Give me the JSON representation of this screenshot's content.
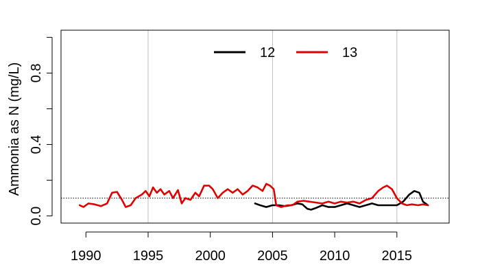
{
  "chart_data": {
    "type": "line",
    "ylabel": "Ammonia as N (mg/L)",
    "xlim": [
      1988.0,
      2019.2
    ],
    "ylim": [
      -0.04,
      1.04
    ],
    "x_ticks": [
      1990,
      1995,
      2000,
      2005,
      2010,
      2015
    ],
    "x_tick_labels": [
      "1990",
      "1995",
      "2000",
      "2005",
      "2010",
      "2015"
    ],
    "y_ticks": [
      0.0,
      0.4,
      0.8
    ],
    "y_tick_labels": [
      "0.0",
      "0.4",
      "0.8"
    ],
    "vertical_gridlines": [
      1995,
      2005,
      2015
    ],
    "reference_line": {
      "y": 0.1,
      "style": "dotted",
      "color": "#000000"
    },
    "legend_position": "top-center",
    "series": [
      {
        "name": "12",
        "color": "#000000",
        "points": [
          [
            2003.6,
            0.07
          ],
          [
            2004.0,
            0.06
          ],
          [
            2004.5,
            0.05
          ],
          [
            2005.0,
            0.06
          ],
          [
            2005.5,
            0.06
          ],
          [
            2006.0,
            0.055
          ],
          [
            2006.5,
            0.06
          ],
          [
            2007.0,
            0.07
          ],
          [
            2007.4,
            0.065
          ],
          [
            2007.8,
            0.04
          ],
          [
            2008.1,
            0.035
          ],
          [
            2008.5,
            0.045
          ],
          [
            2009.0,
            0.06
          ],
          [
            2009.5,
            0.05
          ],
          [
            2010.0,
            0.05
          ],
          [
            2010.5,
            0.06
          ],
          [
            2011.0,
            0.07
          ],
          [
            2011.5,
            0.06
          ],
          [
            2012.0,
            0.05
          ],
          [
            2012.5,
            0.06
          ],
          [
            2013.0,
            0.07
          ],
          [
            2013.5,
            0.06
          ],
          [
            2014.0,
            0.06
          ],
          [
            2014.5,
            0.06
          ],
          [
            2015.0,
            0.06
          ],
          [
            2015.5,
            0.08
          ],
          [
            2016.0,
            0.12
          ],
          [
            2016.4,
            0.14
          ],
          [
            2016.8,
            0.13
          ],
          [
            2017.1,
            0.08
          ],
          [
            2017.5,
            0.06
          ]
        ]
      },
      {
        "name": "13",
        "color": "#e00000",
        "points": [
          [
            1989.5,
            0.06
          ],
          [
            1989.8,
            0.05
          ],
          [
            1990.2,
            0.07
          ],
          [
            1990.7,
            0.065
          ],
          [
            1991.2,
            0.055
          ],
          [
            1991.7,
            0.07
          ],
          [
            1992.1,
            0.13
          ],
          [
            1992.5,
            0.135
          ],
          [
            1992.9,
            0.09
          ],
          [
            1993.2,
            0.05
          ],
          [
            1993.6,
            0.06
          ],
          [
            1994.0,
            0.1
          ],
          [
            1994.5,
            0.12
          ],
          [
            1994.8,
            0.14
          ],
          [
            1995.1,
            0.11
          ],
          [
            1995.4,
            0.16
          ],
          [
            1995.7,
            0.13
          ],
          [
            1996.0,
            0.15
          ],
          [
            1996.3,
            0.12
          ],
          [
            1996.7,
            0.14
          ],
          [
            1997.0,
            0.1
          ],
          [
            1997.4,
            0.145
          ],
          [
            1997.7,
            0.07
          ],
          [
            1998.0,
            0.1
          ],
          [
            1998.4,
            0.09
          ],
          [
            1998.8,
            0.13
          ],
          [
            1999.1,
            0.11
          ],
          [
            1999.5,
            0.17
          ],
          [
            1999.9,
            0.17
          ],
          [
            2000.2,
            0.15
          ],
          [
            2000.6,
            0.1
          ],
          [
            2001.0,
            0.13
          ],
          [
            2001.4,
            0.15
          ],
          [
            2001.8,
            0.13
          ],
          [
            2002.2,
            0.15
          ],
          [
            2002.6,
            0.12
          ],
          [
            2003.0,
            0.14
          ],
          [
            2003.4,
            0.17
          ],
          [
            2003.8,
            0.16
          ],
          [
            2004.2,
            0.14
          ],
          [
            2004.5,
            0.18
          ],
          [
            2004.8,
            0.17
          ],
          [
            2005.1,
            0.15
          ],
          [
            2005.3,
            0.06
          ],
          [
            2005.7,
            0.05
          ],
          [
            2006.2,
            0.06
          ],
          [
            2006.6,
            0.06
          ],
          [
            2007.0,
            0.08
          ],
          [
            2007.5,
            0.085
          ],
          [
            2008.0,
            0.08
          ],
          [
            2008.5,
            0.075
          ],
          [
            2009.0,
            0.07
          ],
          [
            2009.5,
            0.08
          ],
          [
            2010.0,
            0.07
          ],
          [
            2010.5,
            0.08
          ],
          [
            2011.0,
            0.075
          ],
          [
            2011.5,
            0.08
          ],
          [
            2012.0,
            0.07
          ],
          [
            2012.5,
            0.09
          ],
          [
            2013.0,
            0.1
          ],
          [
            2013.5,
            0.14
          ],
          [
            2013.9,
            0.16
          ],
          [
            2014.2,
            0.17
          ],
          [
            2014.6,
            0.15
          ],
          [
            2015.0,
            0.1
          ],
          [
            2015.4,
            0.07
          ],
          [
            2015.8,
            0.06
          ],
          [
            2016.2,
            0.065
          ],
          [
            2016.7,
            0.06
          ],
          [
            2017.1,
            0.065
          ],
          [
            2017.5,
            0.06
          ]
        ]
      }
    ]
  }
}
